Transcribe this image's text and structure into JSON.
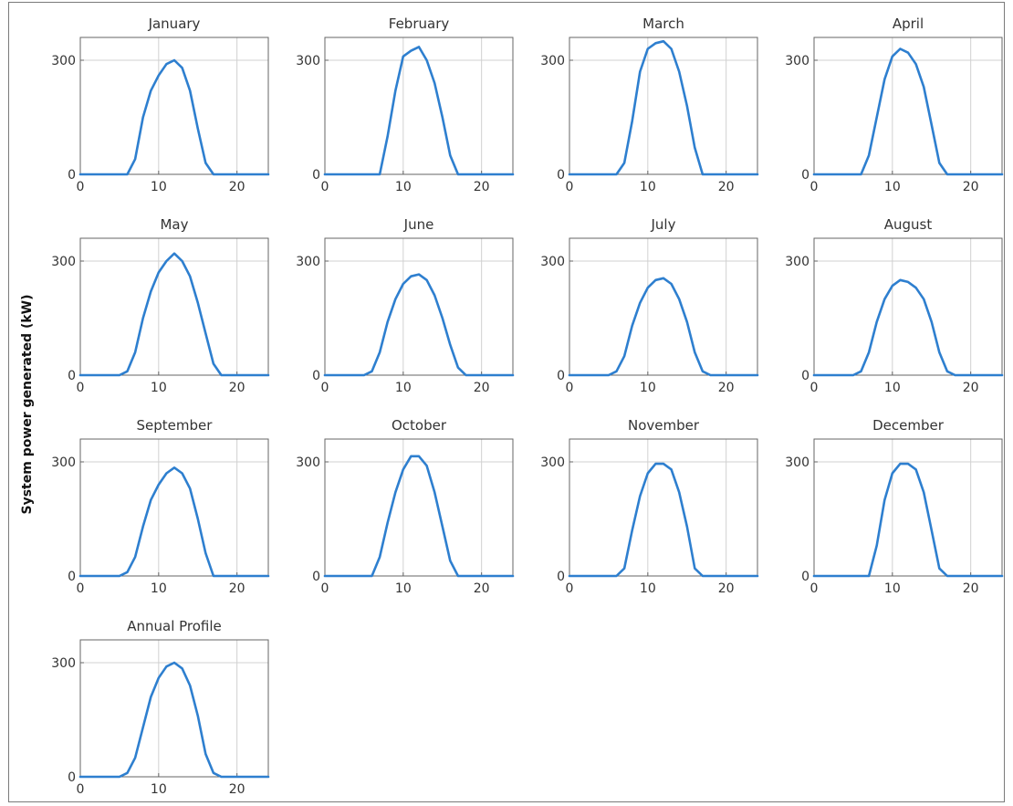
{
  "figure": {
    "ylabel": "System power generated (kW)",
    "line_color": "#2e7fcf",
    "grid_color": "#d0d0d0",
    "axis_color": "#666666"
  },
  "chart_data": [
    {
      "type": "line",
      "title": "January",
      "xlim": [
        0,
        24
      ],
      "ylim": [
        0,
        360
      ],
      "xticks": [
        0,
        10,
        20
      ],
      "yticks": [
        0,
        300
      ],
      "x": [
        0,
        1,
        2,
        3,
        4,
        5,
        6,
        7,
        8,
        9,
        10,
        11,
        12,
        13,
        14,
        15,
        16,
        17,
        18,
        19,
        20,
        21,
        22,
        23,
        24
      ],
      "series": [
        {
          "values": [
            0,
            0,
            0,
            0,
            0,
            0,
            0,
            40,
            150,
            220,
            260,
            290,
            300,
            280,
            220,
            120,
            30,
            0,
            0,
            0,
            0,
            0,
            0,
            0,
            0
          ]
        }
      ]
    },
    {
      "type": "line",
      "title": "February",
      "xlim": [
        0,
        24
      ],
      "ylim": [
        0,
        360
      ],
      "xticks": [
        0,
        10,
        20
      ],
      "yticks": [
        0,
        300
      ],
      "x": [
        0,
        1,
        2,
        3,
        4,
        5,
        6,
        7,
        8,
        9,
        10,
        11,
        12,
        13,
        14,
        15,
        16,
        17,
        18,
        19,
        20,
        21,
        22,
        23,
        24
      ],
      "series": [
        {
          "values": [
            0,
            0,
            0,
            0,
            0,
            0,
            0,
            0,
            100,
            220,
            310,
            325,
            335,
            300,
            240,
            150,
            50,
            0,
            0,
            0,
            0,
            0,
            0,
            0,
            0
          ]
        }
      ]
    },
    {
      "type": "line",
      "title": "March",
      "xlim": [
        0,
        24
      ],
      "ylim": [
        0,
        360
      ],
      "xticks": [
        0,
        10,
        20
      ],
      "yticks": [
        0,
        300
      ],
      "x": [
        0,
        1,
        2,
        3,
        4,
        5,
        6,
        7,
        8,
        9,
        10,
        11,
        12,
        13,
        14,
        15,
        16,
        17,
        18,
        19,
        20,
        21,
        22,
        23,
        24
      ],
      "series": [
        {
          "values": [
            0,
            0,
            0,
            0,
            0,
            0,
            0,
            30,
            140,
            270,
            330,
            345,
            350,
            330,
            270,
            180,
            70,
            0,
            0,
            0,
            0,
            0,
            0,
            0,
            0
          ]
        }
      ]
    },
    {
      "type": "line",
      "title": "April",
      "xlim": [
        0,
        24
      ],
      "ylim": [
        0,
        360
      ],
      "xticks": [
        0,
        10,
        20
      ],
      "yticks": [
        0,
        300
      ],
      "x": [
        0,
        1,
        2,
        3,
        4,
        5,
        6,
        7,
        8,
        9,
        10,
        11,
        12,
        13,
        14,
        15,
        16,
        17,
        18,
        19,
        20,
        21,
        22,
        23,
        24
      ],
      "series": [
        {
          "values": [
            0,
            0,
            0,
            0,
            0,
            0,
            0,
            50,
            150,
            250,
            310,
            330,
            320,
            290,
            230,
            130,
            30,
            0,
            0,
            0,
            0,
            0,
            0,
            0,
            0
          ]
        }
      ]
    },
    {
      "type": "line",
      "title": "May",
      "xlim": [
        0,
        24
      ],
      "ylim": [
        0,
        360
      ],
      "xticks": [
        0,
        10,
        20
      ],
      "yticks": [
        0,
        300
      ],
      "x": [
        0,
        1,
        2,
        3,
        4,
        5,
        6,
        7,
        8,
        9,
        10,
        11,
        12,
        13,
        14,
        15,
        16,
        17,
        18,
        19,
        20,
        21,
        22,
        23,
        24
      ],
      "series": [
        {
          "values": [
            0,
            0,
            0,
            0,
            0,
            0,
            10,
            60,
            150,
            220,
            270,
            300,
            320,
            300,
            260,
            190,
            110,
            30,
            0,
            0,
            0,
            0,
            0,
            0,
            0
          ]
        }
      ]
    },
    {
      "type": "line",
      "title": "June",
      "xlim": [
        0,
        24
      ],
      "ylim": [
        0,
        360
      ],
      "xticks": [
        0,
        10,
        20
      ],
      "yticks": [
        0,
        300
      ],
      "x": [
        0,
        1,
        2,
        3,
        4,
        5,
        6,
        7,
        8,
        9,
        10,
        11,
        12,
        13,
        14,
        15,
        16,
        17,
        18,
        19,
        20,
        21,
        22,
        23,
        24
      ],
      "series": [
        {
          "values": [
            0,
            0,
            0,
            0,
            0,
            0,
            10,
            60,
            140,
            200,
            240,
            260,
            265,
            250,
            210,
            150,
            80,
            20,
            0,
            0,
            0,
            0,
            0,
            0,
            0
          ]
        }
      ]
    },
    {
      "type": "line",
      "title": "July",
      "xlim": [
        0,
        24
      ],
      "ylim": [
        0,
        360
      ],
      "xticks": [
        0,
        10,
        20
      ],
      "yticks": [
        0,
        300
      ],
      "x": [
        0,
        1,
        2,
        3,
        4,
        5,
        6,
        7,
        8,
        9,
        10,
        11,
        12,
        13,
        14,
        15,
        16,
        17,
        18,
        19,
        20,
        21,
        22,
        23,
        24
      ],
      "series": [
        {
          "values": [
            0,
            0,
            0,
            0,
            0,
            0,
            10,
            50,
            130,
            190,
            230,
            250,
            255,
            240,
            200,
            140,
            60,
            10,
            0,
            0,
            0,
            0,
            0,
            0,
            0
          ]
        }
      ]
    },
    {
      "type": "line",
      "title": "August",
      "xlim": [
        0,
        24
      ],
      "ylim": [
        0,
        360
      ],
      "xticks": [
        0,
        10,
        20
      ],
      "yticks": [
        0,
        300
      ],
      "x": [
        0,
        1,
        2,
        3,
        4,
        5,
        6,
        7,
        8,
        9,
        10,
        11,
        12,
        13,
        14,
        15,
        16,
        17,
        18,
        19,
        20,
        21,
        22,
        23,
        24
      ],
      "series": [
        {
          "values": [
            0,
            0,
            0,
            0,
            0,
            0,
            10,
            60,
            140,
            200,
            235,
            250,
            245,
            230,
            200,
            140,
            60,
            10,
            0,
            0,
            0,
            0,
            0,
            0,
            0
          ]
        }
      ]
    },
    {
      "type": "line",
      "title": "September",
      "xlim": [
        0,
        24
      ],
      "ylim": [
        0,
        360
      ],
      "xticks": [
        0,
        10,
        20
      ],
      "yticks": [
        0,
        300
      ],
      "x": [
        0,
        1,
        2,
        3,
        4,
        5,
        6,
        7,
        8,
        9,
        10,
        11,
        12,
        13,
        14,
        15,
        16,
        17,
        18,
        19,
        20,
        21,
        22,
        23,
        24
      ],
      "series": [
        {
          "values": [
            0,
            0,
            0,
            0,
            0,
            0,
            10,
            50,
            130,
            200,
            240,
            270,
            285,
            270,
            230,
            150,
            60,
            0,
            0,
            0,
            0,
            0,
            0,
            0,
            0
          ]
        }
      ]
    },
    {
      "type": "line",
      "title": "October",
      "xlim": [
        0,
        24
      ],
      "ylim": [
        0,
        360
      ],
      "xticks": [
        0,
        10,
        20
      ],
      "yticks": [
        0,
        300
      ],
      "x": [
        0,
        1,
        2,
        3,
        4,
        5,
        6,
        7,
        8,
        9,
        10,
        11,
        12,
        13,
        14,
        15,
        16,
        17,
        18,
        19,
        20,
        21,
        22,
        23,
        24
      ],
      "series": [
        {
          "values": [
            0,
            0,
            0,
            0,
            0,
            0,
            0,
            50,
            140,
            220,
            280,
            315,
            315,
            290,
            220,
            130,
            40,
            0,
            0,
            0,
            0,
            0,
            0,
            0,
            0
          ]
        }
      ]
    },
    {
      "type": "line",
      "title": "November",
      "xlim": [
        0,
        24
      ],
      "ylim": [
        0,
        360
      ],
      "xticks": [
        0,
        10,
        20
      ],
      "yticks": [
        0,
        300
      ],
      "x": [
        0,
        1,
        2,
        3,
        4,
        5,
        6,
        7,
        8,
        9,
        10,
        11,
        12,
        13,
        14,
        15,
        16,
        17,
        18,
        19,
        20,
        21,
        22,
        23,
        24
      ],
      "series": [
        {
          "values": [
            0,
            0,
            0,
            0,
            0,
            0,
            0,
            20,
            120,
            210,
            270,
            295,
            295,
            280,
            220,
            130,
            20,
            0,
            0,
            0,
            0,
            0,
            0,
            0,
            0
          ]
        }
      ]
    },
    {
      "type": "line",
      "title": "December",
      "xlim": [
        0,
        24
      ],
      "ylim": [
        0,
        360
      ],
      "xticks": [
        0,
        10,
        20
      ],
      "yticks": [
        0,
        300
      ],
      "x": [
        0,
        1,
        2,
        3,
        4,
        5,
        6,
        7,
        8,
        9,
        10,
        11,
        12,
        13,
        14,
        15,
        16,
        17,
        18,
        19,
        20,
        21,
        22,
        23,
        24
      ],
      "series": [
        {
          "values": [
            0,
            0,
            0,
            0,
            0,
            0,
            0,
            0,
            80,
            200,
            270,
            295,
            295,
            280,
            220,
            120,
            20,
            0,
            0,
            0,
            0,
            0,
            0,
            0,
            0
          ]
        }
      ]
    },
    {
      "type": "line",
      "title": "Annual Profile",
      "xlim": [
        0,
        24
      ],
      "ylim": [
        0,
        360
      ],
      "xticks": [
        0,
        10,
        20
      ],
      "yticks": [
        0,
        300
      ],
      "x": [
        0,
        1,
        2,
        3,
        4,
        5,
        6,
        7,
        8,
        9,
        10,
        11,
        12,
        13,
        14,
        15,
        16,
        17,
        18,
        19,
        20,
        21,
        22,
        23,
        24
      ],
      "series": [
        {
          "values": [
            0,
            0,
            0,
            0,
            0,
            0,
            10,
            50,
            130,
            210,
            260,
            290,
            300,
            285,
            240,
            160,
            60,
            10,
            0,
            0,
            0,
            0,
            0,
            0,
            0
          ]
        }
      ]
    }
  ]
}
